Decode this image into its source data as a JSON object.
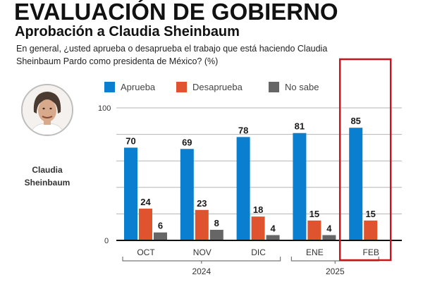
{
  "header": {
    "title": "EVALUACIÓN DE GOBIERNO",
    "subtitle": "Aprobación a Claudia Sheinbaum",
    "question_line1": "En general, ¿usted aprueba o desaprueba el trabajo que está haciendo Claudia",
    "question_line2": "Sheinbaum Pardo como presidenta de México? (%)"
  },
  "profile": {
    "name_line1": "Claudia",
    "name_line2": "Sheinbaum",
    "photo_icon": "person-portrait"
  },
  "chart_data": {
    "type": "bar",
    "title": "Aprobación a Claudia Sheinbaum",
    "xlabel": "",
    "ylabel": "%",
    "ylim": [
      0,
      100
    ],
    "yticks": [
      0,
      100
    ],
    "grid_values": [
      20,
      40,
      60,
      80,
      100
    ],
    "grid": true,
    "legend_position": "top",
    "categories": [
      "OCT",
      "NOV",
      "DIC",
      "ENE",
      "FEB"
    ],
    "year_groups": [
      {
        "label": "2024",
        "months": [
          "OCT",
          "NOV",
          "DIC"
        ]
      },
      {
        "label": "2025",
        "months": [
          "ENE",
          "FEB"
        ]
      }
    ],
    "highlight_category": "FEB",
    "series": [
      {
        "name": "Aprueba",
        "color": "#0a7fcf",
        "values": [
          70,
          69,
          78,
          81,
          85
        ]
      },
      {
        "name": "Desaprueba",
        "color": "#e0532f",
        "values": [
          24,
          23,
          18,
          15,
          15
        ]
      },
      {
        "name": "No sabe",
        "color": "#666666",
        "values": [
          6,
          8,
          4,
          4,
          null
        ]
      }
    ],
    "tick_labels": [
      "0",
      "100"
    ]
  },
  "colors": {
    "highlight_box": "#c8141c",
    "grid": "#b5b5b5",
    "axis": "#111111"
  }
}
